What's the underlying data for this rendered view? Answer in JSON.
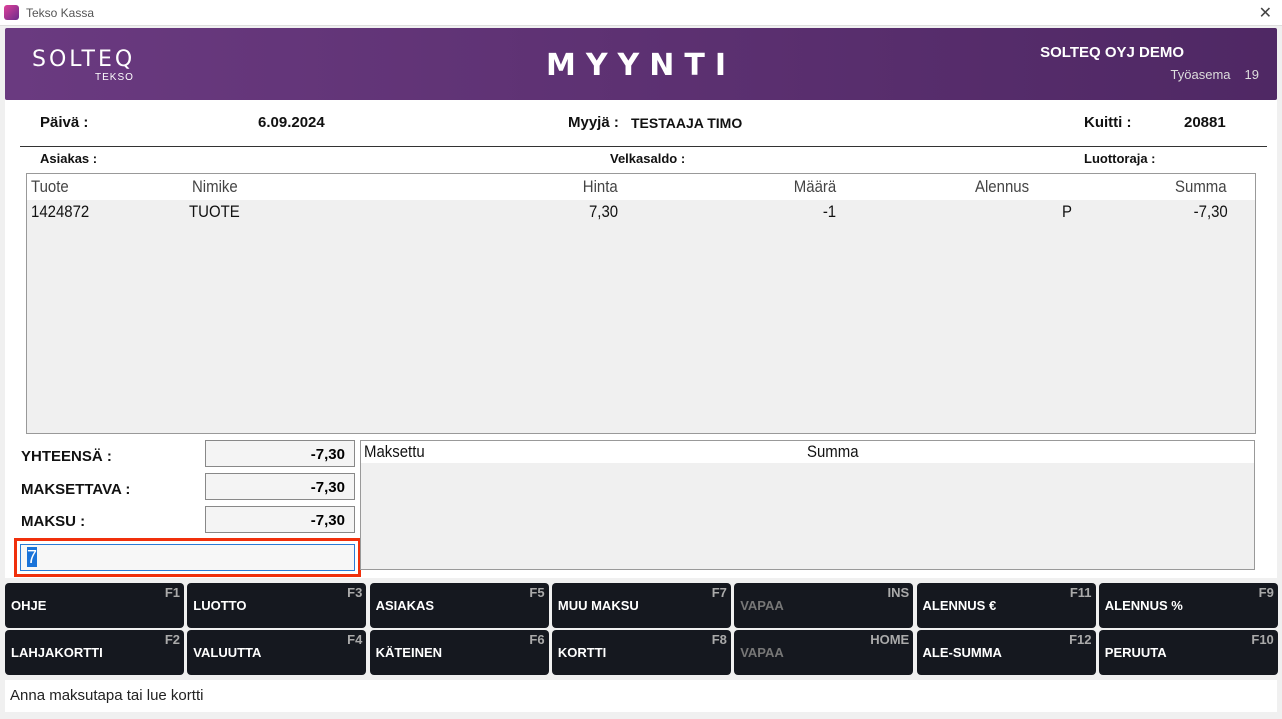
{
  "window": {
    "title": "Tekso Kassa",
    "close": "✕"
  },
  "header": {
    "logo": "SOLTEQ",
    "logo_sub": "TEKSO",
    "heading": "MYYNTI",
    "company": "SOLTEQ OYJ DEMO",
    "workstation_label": "Työasema",
    "workstation": "19"
  },
  "info": {
    "date_label": "Päivä :",
    "date": "6.09.2024",
    "seller_label": "Myyjä :",
    "seller": "TESTAAJA TIMO",
    "receipt_label": "Kuitti :",
    "receipt": "20881",
    "customer_label": "Asiakas :",
    "debt_label": "Velkasaldo :",
    "credit_label": "Luottoraja :"
  },
  "table": {
    "columns": [
      "Tuote",
      "Nimike",
      "Hinta",
      "Määrä",
      "Alennus",
      "Summa"
    ],
    "rows": [
      [
        "1424872",
        "TUOTE",
        "7,30",
        "-1",
        "P",
        "-7,30"
      ]
    ]
  },
  "totals": {
    "total_label": "YHTEENSÄ :",
    "total": "-7,30",
    "payable_label": "MAKSETTAVA :",
    "payable": "-7,30",
    "payment_label": "MAKSU :",
    "payment": "-7,30",
    "input": "7"
  },
  "payments": {
    "columns": [
      "Maksettu",
      "Summa"
    ]
  },
  "buttons": [
    {
      "label": "OHJE",
      "key": "F1"
    },
    {
      "label": "LUOTTO",
      "key": "F3"
    },
    {
      "label": "ASIAKAS",
      "key": "F5"
    },
    {
      "label": "MUU MAKSU",
      "key": "F7"
    },
    {
      "label": "VAPAA",
      "key": "INS"
    },
    {
      "label": "ALENNUS €",
      "key": "F11"
    },
    {
      "label": "ALENNUS %",
      "key": "F9"
    },
    {
      "label": "LAHJAKORTTI",
      "key": "F2"
    },
    {
      "label": "VALUUTTA",
      "key": "F4"
    },
    {
      "label": "KÄTEINEN",
      "key": "F6"
    },
    {
      "label": "KORTTI",
      "key": "F8"
    },
    {
      "label": "VAPAA",
      "key": "HOME"
    },
    {
      "label": "ALE-SUMMA",
      "key": "F12"
    },
    {
      "label": "PERUUTA",
      "key": "F10"
    }
  ],
  "status": "Anna maksutapa tai lue kortti"
}
